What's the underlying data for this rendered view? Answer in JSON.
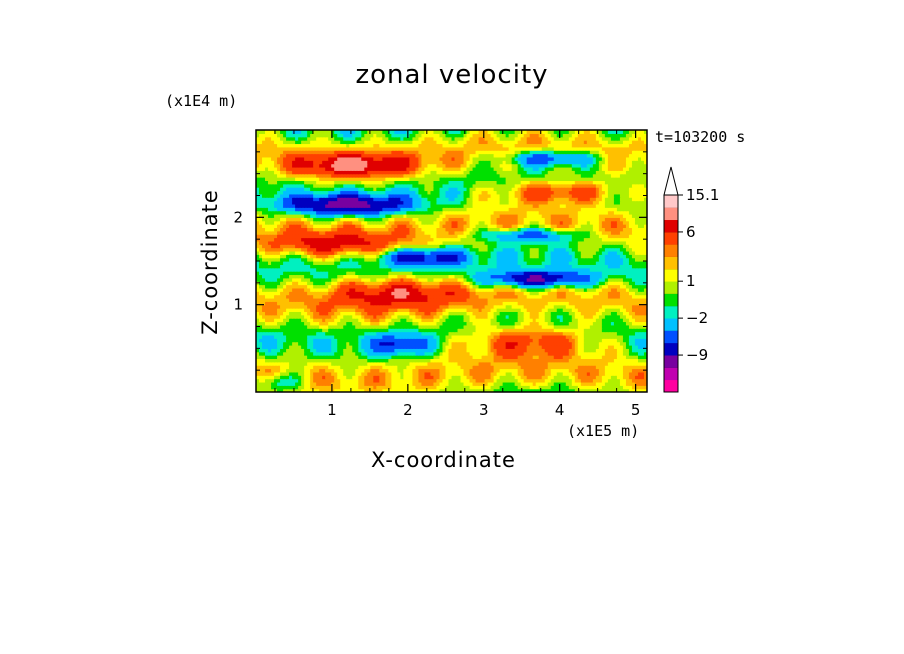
{
  "chart_data": {
    "type": "heatmap",
    "title": "zonal velocity",
    "xlabel": "X-coordinate",
    "ylabel": "Z-coordinate",
    "x_scale_label": "(x1E5 m)",
    "y_scale_label": "(x1E4 m)",
    "time_label": "t=103200 s",
    "xlim": [
      0,
      5.15
    ],
    "ylim": [
      0,
      3.0
    ],
    "x_ticks": [
      1,
      2,
      3,
      4,
      5
    ],
    "y_ticks": [
      1,
      2
    ],
    "x_tick_labels": [
      "1",
      "2",
      "3",
      "4",
      "5"
    ],
    "y_tick_labels": [
      "1",
      "2"
    ],
    "colorbar": {
      "colors": [
        "#ff00a0",
        "#c000b0",
        "#7800a0",
        "#0000c0",
        "#0050ff",
        "#00c0ff",
        "#00f0c0",
        "#00e000",
        "#b0f000",
        "#ffff00",
        "#ffc000",
        "#ff8000",
        "#ff4000",
        "#e00000",
        "#ff9080",
        "#ffc8c8"
      ],
      "labels": [
        "15.1",
        "6",
        "1",
        "-2",
        "-9"
      ],
      "label_levels": [
        15.1,
        6,
        1,
        -2,
        -9
      ],
      "extend_top_color": "#ffffff"
    },
    "levels": [
      -15,
      -12,
      -9,
      -6,
      -4,
      -2,
      -1,
      0,
      1,
      2,
      3,
      4,
      6,
      8,
      11,
      15.1
    ],
    "features": [
      {
        "desc": "negative band",
        "x": [
          0.4,
          2.0
        ],
        "z": 2.15,
        "value": -6
      },
      {
        "desc": "negative band",
        "x": [
          3.3,
          4.5
        ],
        "z": 2.7,
        "value": -4
      },
      {
        "desc": "negative band",
        "x": [
          1.6,
          2.8
        ],
        "z": 1.55,
        "value": -4
      },
      {
        "desc": "negative band",
        "x": [
          3.0,
          4.45
        ],
        "z": 1.3,
        "value": -6
      },
      {
        "desc": "negative band",
        "x": [
          3.0,
          4.3
        ],
        "z": 1.8,
        "value": -4
      },
      {
        "desc": "positive band",
        "x": [
          0.4,
          2.2
        ],
        "z": 2.6,
        "value": 4
      },
      {
        "desc": "positive band",
        "x": [
          3.2,
          5.0
        ],
        "z": 2.3,
        "value": 4
      },
      {
        "desc": "positive band",
        "x": [
          0.0,
          2.5
        ],
        "z": 1.7,
        "value": 3
      },
      {
        "desc": "positive band",
        "x": [
          0.5,
          2.8
        ],
        "z": 1.15,
        "value": 4
      },
      {
        "desc": "positive band",
        "x": [
          2.8,
          4.6
        ],
        "z": 0.55,
        "value": 4
      }
    ]
  }
}
